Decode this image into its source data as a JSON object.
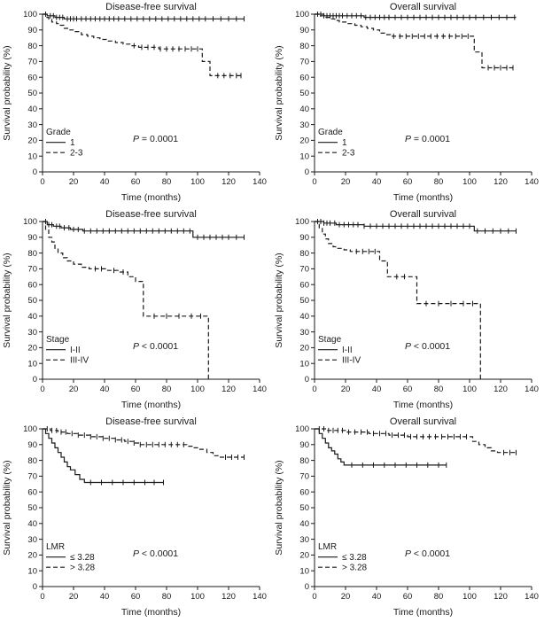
{
  "figure": {
    "background": "#ffffff",
    "line_color": "#1a1a1a",
    "rows": 3,
    "cols": 2,
    "column_titles": [
      "Disease-free survival",
      "Overall survival"
    ]
  },
  "chart_data": [
    {
      "type": "line",
      "subtype": "kaplan-meier-step",
      "title": "Disease-free survival",
      "xlabel": "Time (months)",
      "ylabel": "Survival probability (%)",
      "xlim": [
        0,
        140
      ],
      "ylim": [
        0,
        100
      ],
      "xticks": [
        0,
        20,
        40,
        60,
        80,
        100,
        120,
        140
      ],
      "yticks": [
        0,
        10,
        20,
        30,
        40,
        50,
        60,
        70,
        80,
        90,
        100
      ],
      "p_value": "P = 0.0001",
      "legend_title": "Grade",
      "series": [
        {
          "name": "1",
          "line": "solid",
          "points": [
            [
              3,
              99
            ],
            [
              8,
              98
            ],
            [
              14,
              97
            ]
          ],
          "end": 130,
          "censor_times": [
            2,
            5,
            7,
            9,
            11,
            13,
            16,
            18,
            20,
            22,
            25,
            28,
            31,
            34,
            37,
            40,
            43,
            46,
            49,
            53,
            57,
            61,
            65,
            69,
            73,
            77,
            81,
            85,
            89,
            93,
            97,
            101,
            105,
            110,
            115,
            120,
            125,
            130
          ]
        },
        {
          "name": "2-3",
          "line": "dashed",
          "points": [
            [
              2,
              98
            ],
            [
              4,
              97
            ],
            [
              6,
              95
            ],
            [
              9,
              94
            ],
            [
              11,
              93
            ],
            [
              14,
              91
            ],
            [
              17,
              90
            ],
            [
              21,
              89
            ],
            [
              25,
              87
            ],
            [
              29,
              86
            ],
            [
              33,
              85
            ],
            [
              37,
              84
            ],
            [
              42,
              83
            ],
            [
              47,
              82
            ],
            [
              52,
              81
            ],
            [
              57,
              80
            ],
            [
              62,
              79
            ],
            [
              75,
              78
            ],
            [
              103,
              70
            ],
            [
              108,
              61
            ]
          ],
          "end": 128,
          "censor_times": [
            59,
            64,
            68,
            72,
            76,
            80,
            84,
            88,
            92,
            96,
            100,
            113,
            117,
            121,
            125,
            128
          ]
        }
      ]
    },
    {
      "type": "line",
      "subtype": "kaplan-meier-step",
      "title": "Overall survival",
      "xlabel": "Time (months)",
      "ylabel": "Survival probability (%)",
      "xlim": [
        0,
        140
      ],
      "ylim": [
        0,
        100
      ],
      "xticks": [
        0,
        20,
        40,
        60,
        80,
        100,
        120,
        140
      ],
      "yticks": [
        0,
        10,
        20,
        30,
        40,
        50,
        60,
        70,
        80,
        90,
        100
      ],
      "p_value": "P = 0.0001",
      "legend_title": "Grade",
      "series": [
        {
          "name": "1",
          "line": "solid",
          "points": [
            [
              6,
              99
            ],
            [
              32,
              98
            ]
          ],
          "end": 130,
          "censor_times": [
            2,
            4,
            6,
            8,
            10,
            12,
            14,
            16,
            18,
            21,
            24,
            27,
            30,
            33,
            36,
            39,
            42,
            45,
            48,
            52,
            56,
            60,
            64,
            68,
            72,
            76,
            80,
            84,
            88,
            92,
            96,
            100,
            104,
            109,
            114,
            119,
            124,
            129
          ]
        },
        {
          "name": "2-3",
          "line": "dashed",
          "points": [
            [
              3,
              99
            ],
            [
              7,
              98
            ],
            [
              10,
              97
            ],
            [
              13,
              96
            ],
            [
              16,
              95
            ],
            [
              21,
              94
            ],
            [
              26,
              93
            ],
            [
              30,
              92
            ],
            [
              34,
              91
            ],
            [
              38,
              90
            ],
            [
              42,
              88
            ],
            [
              46,
              87
            ],
            [
              49,
              86
            ],
            [
              103,
              76
            ],
            [
              108,
              66
            ]
          ],
          "end": 128,
          "censor_times": [
            51,
            55,
            59,
            63,
            67,
            71,
            75,
            79,
            83,
            87,
            91,
            95,
            99,
            112,
            116,
            120,
            124,
            128
          ]
        }
      ]
    },
    {
      "type": "line",
      "subtype": "kaplan-meier-step",
      "title": "Disease-free survival",
      "xlabel": "Time (months)",
      "ylabel": "Survival probability (%)",
      "xlim": [
        0,
        140
      ],
      "ylim": [
        0,
        100
      ],
      "xticks": [
        0,
        20,
        40,
        60,
        80,
        100,
        120,
        140
      ],
      "yticks": [
        0,
        10,
        20,
        30,
        40,
        50,
        60,
        70,
        80,
        90,
        100
      ],
      "p_value": "P < 0.0001",
      "legend_title": "Stage",
      "series": [
        {
          "name": "I-II",
          "line": "solid",
          "points": [
            [
              3,
              98
            ],
            [
              7,
              97
            ],
            [
              12,
              96
            ],
            [
              18,
              95
            ],
            [
              26,
              94
            ],
            [
              97,
              90
            ]
          ],
          "end": 130,
          "censor_times": [
            2,
            4,
            6,
            9,
            11,
            14,
            17,
            20,
            23,
            27,
            31,
            35,
            39,
            43,
            47,
            51,
            55,
            59,
            63,
            67,
            71,
            75,
            79,
            83,
            87,
            91,
            95,
            100,
            104,
            108,
            112,
            116,
            120,
            125,
            130
          ]
        },
        {
          "name": "III-IV",
          "line": "dashed",
          "points": [
            [
              2,
              95
            ],
            [
              4,
              90
            ],
            [
              6,
              87
            ],
            [
              8,
              83
            ],
            [
              10,
              80
            ],
            [
              13,
              77
            ],
            [
              16,
              75
            ],
            [
              20,
              73
            ],
            [
              25,
              71
            ],
            [
              30,
              70
            ],
            [
              42,
              69
            ],
            [
              50,
              68
            ],
            [
              55,
              65
            ],
            [
              60,
              62
            ],
            [
              65,
              40
            ],
            [
              107,
              0
            ]
          ],
          "end": 107,
          "censor_times": [
            34,
            38,
            46,
            52,
            72,
            80,
            88,
            96,
            102
          ]
        }
      ]
    },
    {
      "type": "line",
      "subtype": "kaplan-meier-step",
      "title": "Overall survival",
      "xlabel": "Time (months)",
      "ylabel": "Survival probability (%)",
      "xlim": [
        0,
        140
      ],
      "ylim": [
        0,
        100
      ],
      "xticks": [
        0,
        20,
        40,
        60,
        80,
        100,
        120,
        140
      ],
      "yticks": [
        0,
        10,
        20,
        30,
        40,
        50,
        60,
        70,
        80,
        90,
        100
      ],
      "p_value": "P < 0.0001",
      "legend_title": "Stage",
      "series": [
        {
          "name": "I-II",
          "line": "solid",
          "points": [
            [
              6,
              99
            ],
            [
              14,
              98
            ],
            [
              32,
              97
            ],
            [
              103,
              94
            ]
          ],
          "end": 130,
          "censor_times": [
            2,
            4,
            6,
            8,
            10,
            13,
            16,
            19,
            22,
            25,
            28,
            32,
            36,
            40,
            44,
            48,
            52,
            56,
            60,
            64,
            68,
            72,
            76,
            80,
            84,
            88,
            92,
            96,
            100,
            105,
            110,
            115,
            120,
            125,
            130
          ]
        },
        {
          "name": "III-IV",
          "line": "dashed",
          "points": [
            [
              3,
              96
            ],
            [
              5,
              92
            ],
            [
              7,
              89
            ],
            [
              9,
              86
            ],
            [
              12,
              84
            ],
            [
              15,
              83
            ],
            [
              19,
              82
            ],
            [
              23,
              81
            ],
            [
              42,
              75
            ],
            [
              47,
              65
            ],
            [
              66,
              48
            ],
            [
              107,
              0
            ]
          ],
          "end": 107,
          "censor_times": [
            27,
            31,
            35,
            39,
            53,
            58,
            72,
            80,
            88,
            96,
            102
          ]
        }
      ]
    },
    {
      "type": "line",
      "subtype": "kaplan-meier-step",
      "title": "Disease-free survival",
      "xlabel": "Time (months)",
      "ylabel": "Survival probability (%)",
      "xlim": [
        0,
        140
      ],
      "ylim": [
        0,
        100
      ],
      "xticks": [
        0,
        20,
        40,
        60,
        80,
        100,
        120,
        140
      ],
      "yticks": [
        0,
        10,
        20,
        30,
        40,
        50,
        60,
        70,
        80,
        90,
        100
      ],
      "p_value": "P < 0.0001",
      "legend_title": "LMR",
      "series": [
        {
          "name": "≤ 3.28",
          "line": "solid",
          "points": [
            [
              2,
              97
            ],
            [
              4,
              94
            ],
            [
              6,
              91
            ],
            [
              8,
              88
            ],
            [
              10,
              85
            ],
            [
              12,
              82
            ],
            [
              14,
              79
            ],
            [
              16,
              76
            ],
            [
              18,
              74
            ],
            [
              21,
              71
            ],
            [
              24,
              68
            ],
            [
              27,
              66
            ]
          ],
          "end": 78,
          "censor_times": [
            31,
            38,
            45,
            52,
            59,
            66,
            72,
            78
          ]
        },
        {
          "name": "> 3.28",
          "line": "dashed",
          "points": [
            [
              5,
              99
            ],
            [
              10,
              98
            ],
            [
              16,
              97
            ],
            [
              23,
              96
            ],
            [
              31,
              95
            ],
            [
              39,
              94
            ],
            [
              47,
              93
            ],
            [
              53,
              92
            ],
            [
              59,
              91
            ],
            [
              63,
              90
            ],
            [
              93,
              89
            ],
            [
              97,
              88
            ],
            [
              101,
              87
            ],
            [
              106,
              85
            ],
            [
              110,
              83
            ],
            [
              114,
              82
            ]
          ],
          "end": 130,
          "censor_times": [
            3,
            6,
            9,
            12,
            15,
            19,
            23,
            27,
            31,
            35,
            39,
            43,
            47,
            51,
            55,
            59,
            63,
            67,
            71,
            75,
            79,
            83,
            87,
            91,
            118,
            122,
            126,
            130
          ]
        }
      ]
    },
    {
      "type": "line",
      "subtype": "kaplan-meier-step",
      "title": "Overall survival",
      "xlabel": "Time (months)",
      "ylabel": "Survival probability (%)",
      "xlim": [
        0,
        140
      ],
      "ylim": [
        0,
        100
      ],
      "xticks": [
        0,
        20,
        40,
        60,
        80,
        100,
        120,
        140
      ],
      "yticks": [
        0,
        10,
        20,
        30,
        40,
        50,
        60,
        70,
        80,
        90,
        100
      ],
      "p_value": "P < 0.0001",
      "legend_title": "LMR",
      "series": [
        {
          "name": "≤ 3.28",
          "line": "solid",
          "points": [
            [
              3,
              97
            ],
            [
              5,
              94
            ],
            [
              7,
              91
            ],
            [
              9,
              88
            ],
            [
              11,
              86
            ],
            [
              13,
              84
            ],
            [
              15,
              81
            ],
            [
              17,
              79
            ],
            [
              19,
              77
            ]
          ],
          "end": 85,
          "censor_times": [
            24,
            31,
            38,
            45,
            52,
            59,
            66,
            73,
            80,
            85
          ]
        },
        {
          "name": "> 3.28",
          "line": "dashed",
          "points": [
            [
              8,
              99
            ],
            [
              20,
              98
            ],
            [
              35,
              97
            ],
            [
              48,
              96
            ],
            [
              60,
              95
            ],
            [
              102,
              92
            ],
            [
              106,
              90
            ],
            [
              110,
              88
            ],
            [
              114,
              86
            ],
            [
              118,
              85
            ]
          ],
          "end": 130,
          "censor_times": [
            3,
            6,
            9,
            12,
            15,
            18,
            22,
            26,
            30,
            34,
            38,
            42,
            46,
            50,
            54,
            58,
            62,
            66,
            70,
            74,
            78,
            82,
            86,
            90,
            94,
            98,
            122,
            126,
            130
          ]
        }
      ]
    }
  ]
}
